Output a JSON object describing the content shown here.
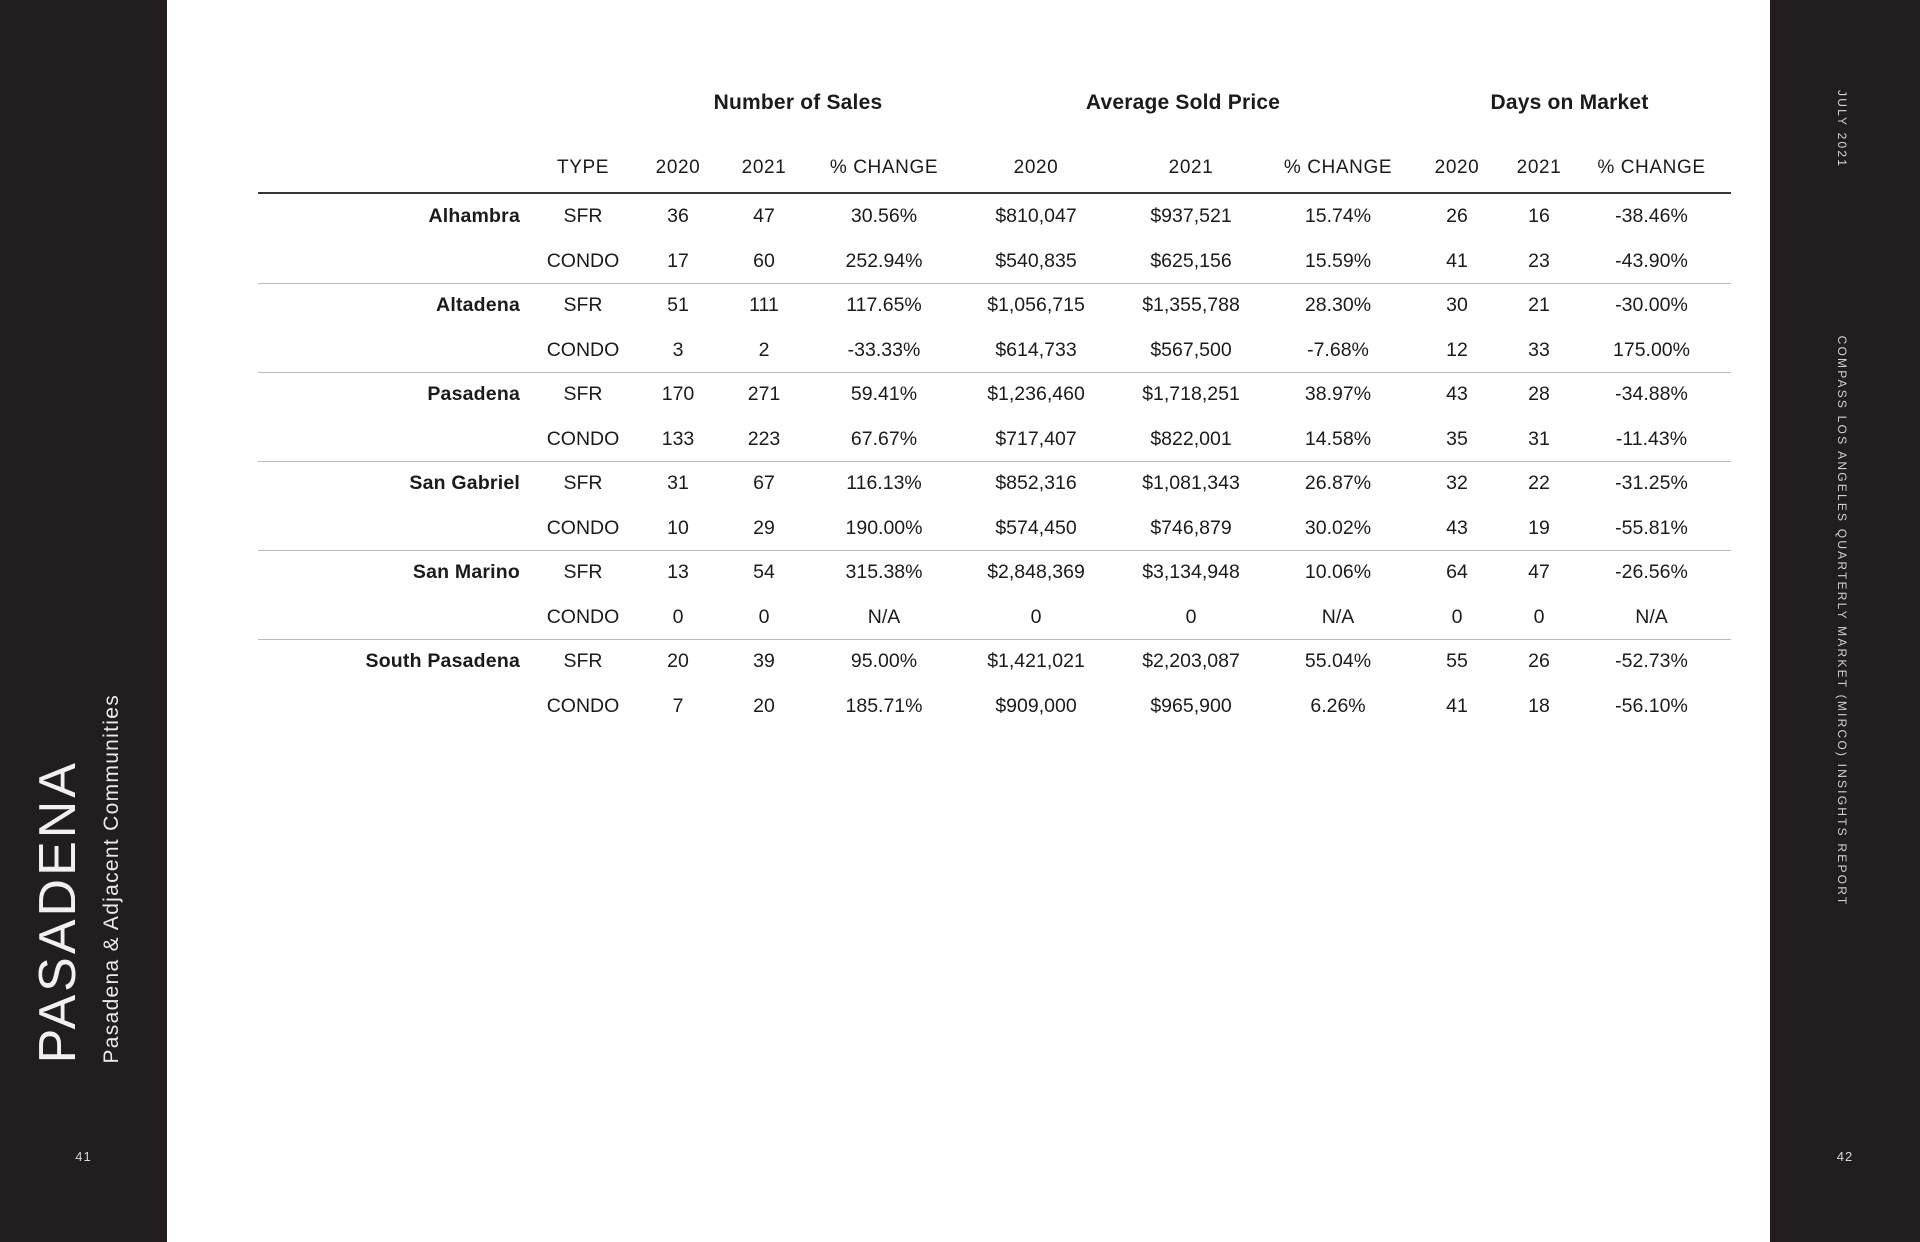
{
  "left_sidebar": {
    "title": "PASADENA",
    "subtitle": "Pasadena & Adjacent Communities",
    "page_number": "41"
  },
  "right_sidebar": {
    "issue": "JULY 2021",
    "report": "COMPASS LOS ANGELES QUARTERLY MARKET (MIRCO) INSIGHTS REPORT",
    "page_number": "42"
  },
  "table": {
    "group_headers": [
      "Number of Sales",
      "Average Sold Price",
      "Days on Market"
    ],
    "columns": [
      "TYPE",
      "2020",
      "2021",
      "% CHANGE",
      "2020",
      "2021",
      "% CHANGE",
      "2020",
      "2021",
      "% CHANGE"
    ],
    "rows": [
      {
        "community": "Alhambra",
        "type": "SFR",
        "sales_2020": "36",
        "sales_2021": "47",
        "sales_change": "30.56%",
        "price_2020": "$810,047",
        "price_2021": "$937,521",
        "price_change": "15.74%",
        "dom_2020": "26",
        "dom_2021": "16",
        "dom_change": "-38.46%"
      },
      {
        "community": "",
        "type": "CONDO",
        "sales_2020": "17",
        "sales_2021": "60",
        "sales_change": "252.94%",
        "price_2020": "$540,835",
        "price_2021": "$625,156",
        "price_change": "15.59%",
        "dom_2020": "41",
        "dom_2021": "23",
        "dom_change": "-43.90%"
      },
      {
        "community": "Altadena",
        "type": "SFR",
        "sales_2020": "51",
        "sales_2021": "111",
        "sales_change": "117.65%",
        "price_2020": "$1,056,715",
        "price_2021": "$1,355,788",
        "price_change": "28.30%",
        "dom_2020": "30",
        "dom_2021": "21",
        "dom_change": "-30.00%"
      },
      {
        "community": "",
        "type": "CONDO",
        "sales_2020": "3",
        "sales_2021": "2",
        "sales_change": "-33.33%",
        "price_2020": "$614,733",
        "price_2021": "$567,500",
        "price_change": "-7.68%",
        "dom_2020": "12",
        "dom_2021": "33",
        "dom_change": "175.00%"
      },
      {
        "community": "Pasadena",
        "type": "SFR",
        "sales_2020": "170",
        "sales_2021": "271",
        "sales_change": "59.41%",
        "price_2020": "$1,236,460",
        "price_2021": "$1,718,251",
        "price_change": "38.97%",
        "dom_2020": "43",
        "dom_2021": "28",
        "dom_change": "-34.88%"
      },
      {
        "community": "",
        "type": "CONDO",
        "sales_2020": "133",
        "sales_2021": "223",
        "sales_change": "67.67%",
        "price_2020": "$717,407",
        "price_2021": "$822,001",
        "price_change": "14.58%",
        "dom_2020": "35",
        "dom_2021": "31",
        "dom_change": "-11.43%"
      },
      {
        "community": "San Gabriel",
        "type": "SFR",
        "sales_2020": "31",
        "sales_2021": "67",
        "sales_change": "116.13%",
        "price_2020": "$852,316",
        "price_2021": "$1,081,343",
        "price_change": "26.87%",
        "dom_2020": "32",
        "dom_2021": "22",
        "dom_change": "-31.25%"
      },
      {
        "community": "",
        "type": "CONDO",
        "sales_2020": "10",
        "sales_2021": "29",
        "sales_change": "190.00%",
        "price_2020": "$574,450",
        "price_2021": "$746,879",
        "price_change": "30.02%",
        "dom_2020": "43",
        "dom_2021": "19",
        "dom_change": "-55.81%"
      },
      {
        "community": "San Marino",
        "type": "SFR",
        "sales_2020": "13",
        "sales_2021": "54",
        "sales_change": "315.38%",
        "price_2020": "$2,848,369",
        "price_2021": "$3,134,948",
        "price_change": "10.06%",
        "dom_2020": "64",
        "dom_2021": "47",
        "dom_change": "-26.56%"
      },
      {
        "community": "",
        "type": "CONDO",
        "sales_2020": "0",
        "sales_2021": "0",
        "sales_change": "N/A",
        "price_2020": "0",
        "price_2021": "0",
        "price_change": "N/A",
        "dom_2020": "0",
        "dom_2021": "0",
        "dom_change": "N/A"
      },
      {
        "community": "South Pasadena",
        "type": "SFR",
        "sales_2020": "20",
        "sales_2021": "39",
        "sales_change": "95.00%",
        "price_2020": "$1,421,021",
        "price_2021": "$2,203,087",
        "price_change": "55.04%",
        "dom_2020": "55",
        "dom_2021": "26",
        "dom_change": "-52.73%"
      },
      {
        "community": "",
        "type": "CONDO",
        "sales_2020": "7",
        "sales_2021": "20",
        "sales_change": "185.71%",
        "price_2020": "$909,000",
        "price_2021": "$965,900",
        "price_change": "6.26%",
        "dom_2020": "41",
        "dom_2021": "18",
        "dom_change": "-56.10%"
      }
    ]
  }
}
